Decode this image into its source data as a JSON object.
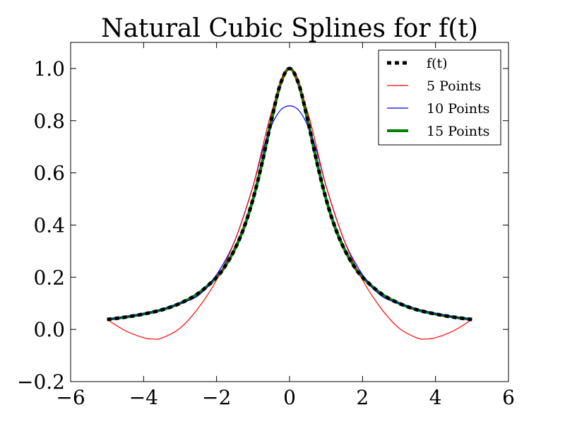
{
  "chart_data": {
    "type": "line",
    "title": "Natural Cubic Splines for f(t)",
    "xlabel": "",
    "ylabel": "",
    "xlim": [
      -6,
      6
    ],
    "ylim": [
      -0.2,
      1.1
    ],
    "xticks": [
      -6,
      -4,
      -2,
      0,
      2,
      4,
      6
    ],
    "xtick_labels": [
      "−6",
      "−4",
      "−2",
      "0",
      "2",
      "4",
      "6"
    ],
    "yticks": [
      -0.2,
      0.0,
      0.2,
      0.4,
      0.6,
      0.8,
      1.0
    ],
    "ytick_labels": [
      "−0.2",
      "0.0",
      "0.2",
      "0.4",
      "0.6",
      "0.8",
      "1.0"
    ],
    "grid": false,
    "legend_position": "top-right",
    "series": [
      {
        "name": "f(t)",
        "color": "#000000",
        "style": "dashed",
        "x": [
          -5,
          -4.5,
          -4,
          -3.5,
          -3,
          -2.5,
          -2,
          -1.75,
          -1.5,
          -1.25,
          -1,
          -0.75,
          -0.5,
          -0.25,
          0,
          0.25,
          0.5,
          0.75,
          1,
          1.25,
          1.5,
          1.75,
          2,
          2.5,
          3,
          3.5,
          4,
          4.5,
          5
        ],
        "y": [
          0.038,
          0.047,
          0.059,
          0.075,
          0.1,
          0.138,
          0.2,
          0.246,
          0.308,
          0.39,
          0.5,
          0.64,
          0.8,
          0.941,
          1.0,
          0.941,
          0.8,
          0.64,
          0.5,
          0.39,
          0.308,
          0.246,
          0.2,
          0.138,
          0.1,
          0.075,
          0.059,
          0.047,
          0.038
        ]
      },
      {
        "name": "5 Points",
        "color": "#ff0000",
        "style": "solid",
        "x": [
          -5,
          -4.5,
          -4,
          -3.75,
          -3.5,
          -3,
          -2.5,
          -2,
          -1.5,
          -1,
          -0.5,
          0,
          0.5,
          1,
          1.5,
          2,
          2.5,
          3,
          3.5,
          3.75,
          4,
          4.5,
          5
        ],
        "y": [
          0.038,
          -0.005,
          -0.032,
          -0.037,
          -0.033,
          0.005,
          0.082,
          0.19,
          0.34,
          0.55,
          0.83,
          1.0,
          0.83,
          0.55,
          0.34,
          0.19,
          0.082,
          0.005,
          -0.033,
          -0.037,
          -0.032,
          -0.005,
          0.038
        ]
      },
      {
        "name": "10 Points",
        "color": "#0000ff",
        "style": "solid",
        "x": [
          -5,
          -4.5,
          -4,
          -3.5,
          -3,
          -2.5,
          -2,
          -1.5,
          -1,
          -0.75,
          -0.5,
          -0.25,
          0,
          0.25,
          0.5,
          0.75,
          1,
          1.5,
          2,
          2.5,
          3,
          3.5,
          4,
          4.5,
          5
        ],
        "y": [
          0.038,
          0.048,
          0.06,
          0.076,
          0.1,
          0.13,
          0.21,
          0.34,
          0.55,
          0.68,
          0.78,
          0.84,
          0.857,
          0.84,
          0.78,
          0.68,
          0.55,
          0.34,
          0.21,
          0.13,
          0.1,
          0.076,
          0.06,
          0.048,
          0.038
        ]
      },
      {
        "name": "15 Points",
        "color": "#008000",
        "style": "solid-thick",
        "x": [
          -5,
          -4.5,
          -4,
          -3.5,
          -3,
          -2.5,
          -2,
          -1.75,
          -1.5,
          -1.25,
          -1,
          -0.75,
          -0.5,
          -0.25,
          0,
          0.25,
          0.5,
          0.75,
          1,
          1.25,
          1.5,
          1.75,
          2,
          2.5,
          3,
          3.5,
          4,
          4.5,
          5
        ],
        "y": [
          0.038,
          0.047,
          0.059,
          0.075,
          0.1,
          0.138,
          0.2,
          0.246,
          0.308,
          0.39,
          0.5,
          0.64,
          0.8,
          0.94,
          1.0,
          0.94,
          0.8,
          0.64,
          0.5,
          0.39,
          0.308,
          0.246,
          0.2,
          0.138,
          0.1,
          0.075,
          0.059,
          0.047,
          0.038
        ]
      }
    ]
  }
}
